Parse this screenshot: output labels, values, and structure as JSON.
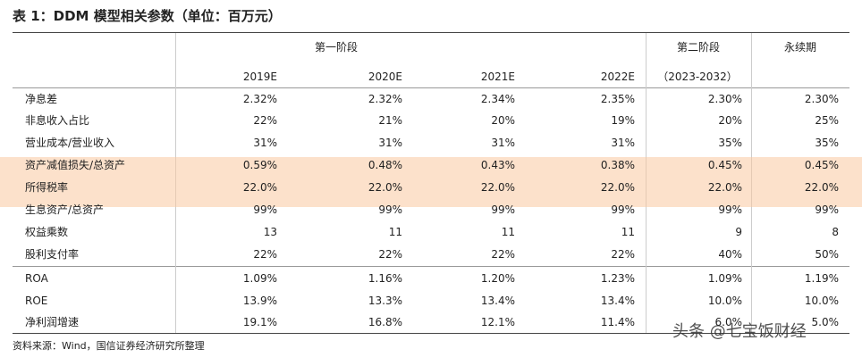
{
  "title": "表 1：DDM 模型相关参数（单位：百万元）",
  "table": {
    "stage_headers": [
      "第一阶段",
      "第二阶段",
      "永续期"
    ],
    "columns": [
      "2019E",
      "2020E",
      "2021E",
      "2022E",
      "（2023-2032）",
      ""
    ],
    "rows": [
      [
        "净息差",
        "2.32%",
        "2.32%",
        "2.34%",
        "2.35%",
        "2.30%",
        "2.30%"
      ],
      [
        "非息收入占比",
        "22%",
        "21%",
        "20%",
        "19%",
        "20%",
        "25%"
      ],
      [
        "营业成本/营业收入",
        "31%",
        "31%",
        "31%",
        "31%",
        "35%",
        "35%"
      ],
      [
        "资产减值损失/总资产",
        "0.59%",
        "0.48%",
        "0.43%",
        "0.38%",
        "0.45%",
        "0.45%"
      ],
      [
        "所得税率",
        "22.0%",
        "22.0%",
        "22.0%",
        "22.0%",
        "22.0%",
        "22.0%"
      ],
      [
        "生息资产/总资产",
        "99%",
        "99%",
        "99%",
        "99%",
        "99%",
        "99%"
      ],
      [
        "权益乘数",
        "13",
        "11",
        "11",
        "11",
        "9",
        "8"
      ],
      [
        "股利支付率",
        "22%",
        "22%",
        "22%",
        "22%",
        "40%",
        "50%"
      ],
      [
        "ROA",
        "1.09%",
        "1.16%",
        "1.20%",
        "1.23%",
        "1.09%",
        "1.19%"
      ],
      [
        "ROE",
        "13.9%",
        "13.3%",
        "13.4%",
        "13.4%",
        "10.0%",
        "10.0%"
      ],
      [
        "净利润增速",
        "19.1%",
        "16.8%",
        "12.1%",
        "11.4%",
        "6.0%",
        "5.0%"
      ]
    ]
  },
  "source": "资料来源：Wind，国信证券经济研究所整理",
  "watermark": "头条 @七宝饭财经"
}
